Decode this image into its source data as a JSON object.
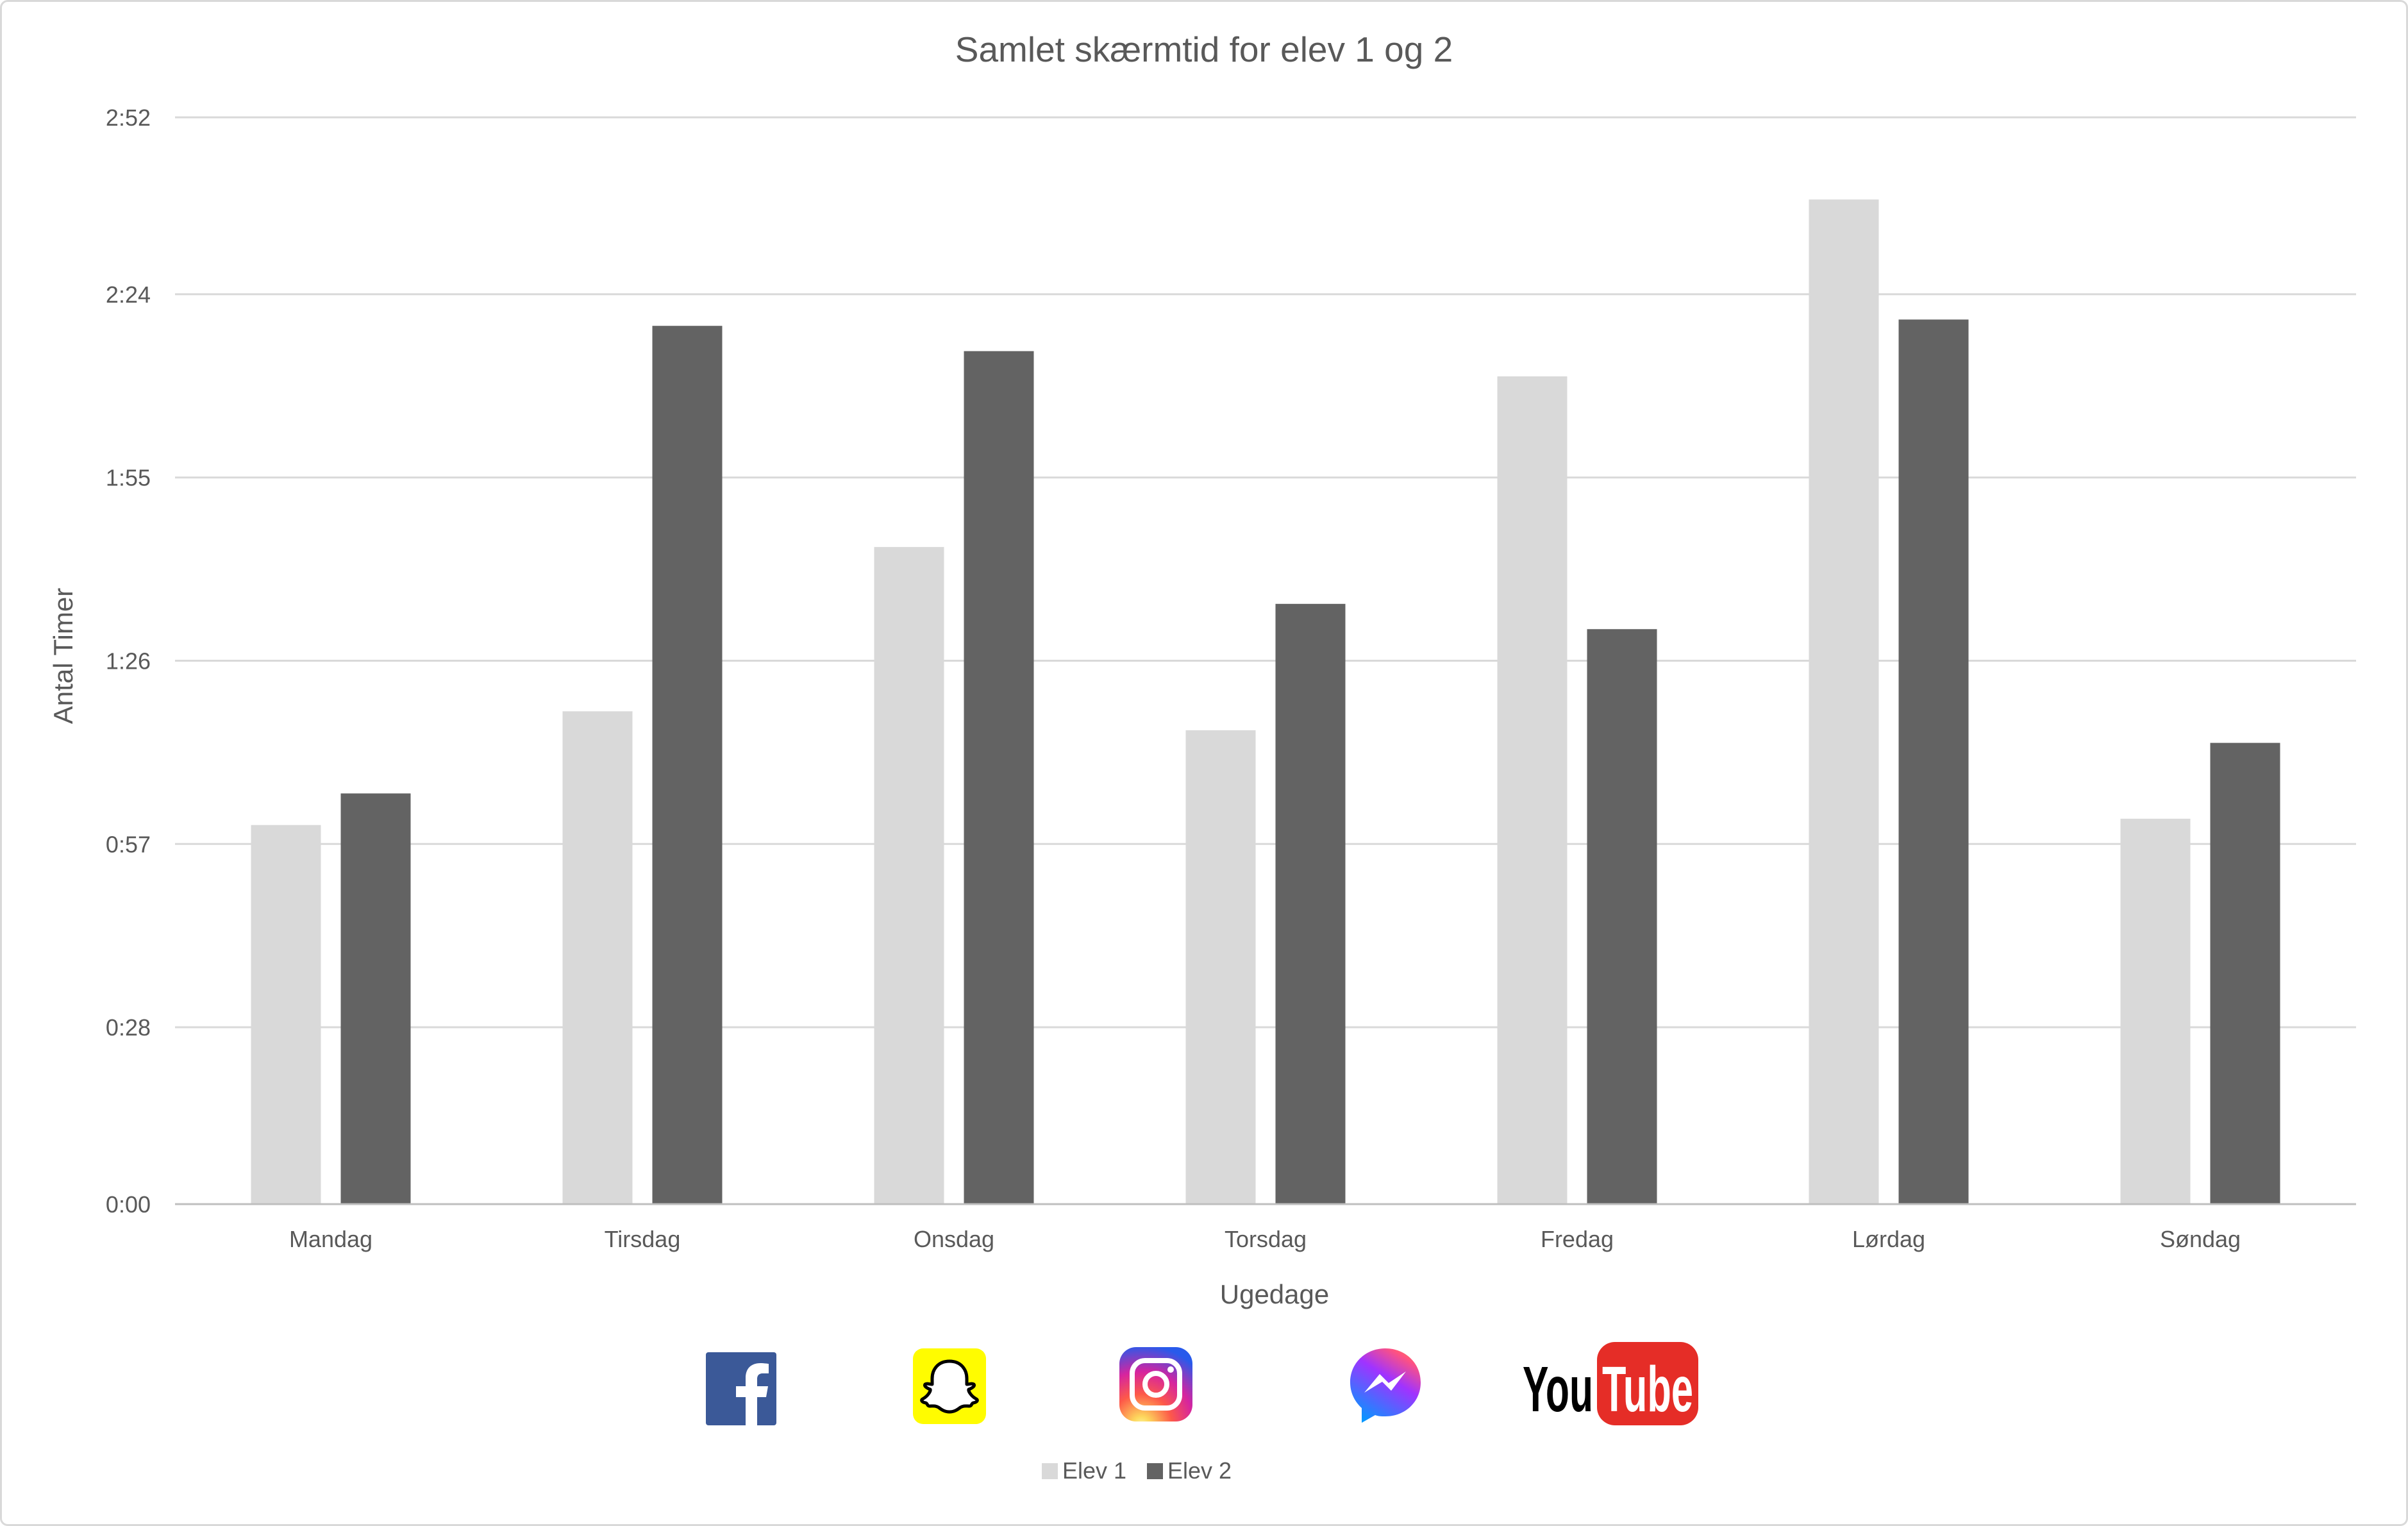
{
  "chart_data": {
    "type": "bar",
    "title": "Samlet skærmtid for elev 1 og 2",
    "xlabel": "Ugedage",
    "ylabel": "Antal Timer",
    "y_unit": "minutes",
    "ylim": [
      0,
      172
    ],
    "y_ticks": [
      {
        "value": 0,
        "label": "0:00"
      },
      {
        "value": 28,
        "label": "0:28"
      },
      {
        "value": 57,
        "label": "0:57"
      },
      {
        "value": 86,
        "label": "1:26"
      },
      {
        "value": 115,
        "label": "1:55"
      },
      {
        "value": 144,
        "label": "2:24"
      },
      {
        "value": 172,
        "label": "2:52"
      }
    ],
    "categories": [
      "Mandag",
      "Tirsdag",
      "Onsdag",
      "Torsdag",
      "Fredag",
      "Lørdag",
      "Søndag"
    ],
    "series": [
      {
        "name": "Elev 1",
        "color": "#d9d9d9",
        "values": [
          60,
          78,
          104,
          75,
          131,
          159,
          61
        ]
      },
      {
        "name": "Elev 2",
        "color": "#636363",
        "values": [
          65,
          139,
          135,
          95,
          91,
          140,
          73
        ]
      }
    ],
    "grid": true,
    "legend": "bottom"
  },
  "icons": [
    {
      "name": "facebook-icon",
      "color": "#3b5998"
    },
    {
      "name": "snapchat-icon",
      "color": "#fffc00"
    },
    {
      "name": "instagram-icon",
      "color": "#d6249f"
    },
    {
      "name": "messenger-icon",
      "color": "#a334fa"
    },
    {
      "name": "youtube-icon",
      "color": "#e52d27",
      "text_you": "You",
      "text_tube": "Tube"
    }
  ]
}
